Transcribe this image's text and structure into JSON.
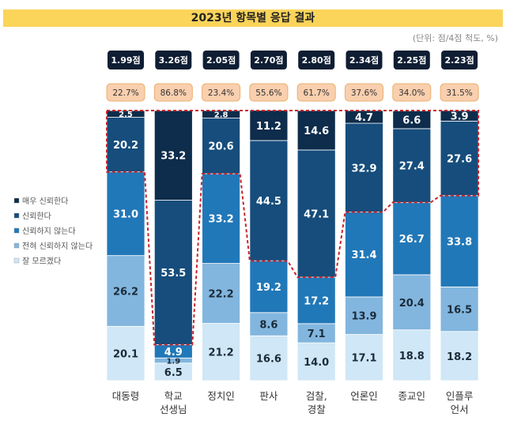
{
  "chart_data": {
    "type": "bar",
    "stacked": true,
    "orientation": "vertical",
    "title": "2023년 항목별 응답 결과",
    "unit_note": "(단위: 점/4점 척도, %)",
    "categories": [
      "대동령",
      "학교\n선생님",
      "정치인",
      "판사",
      "검찰,\n경찰",
      "언론인",
      "종교인",
      "인플루\n언서"
    ],
    "scores": [
      "1.99점",
      "3.26점",
      "2.05점",
      "2.70점",
      "2.80점",
      "2.34점",
      "2.25점",
      "2.23점"
    ],
    "trust_percents": [
      "22.7%",
      "86.8%",
      "23.4%",
      "55.6%",
      "61.7%",
      "37.6%",
      "34.0%",
      "31.5%"
    ],
    "series": [
      {
        "name": "잘 모르겠다",
        "color": "#cfe7f6",
        "values": [
          20.1,
          6.5,
          21.2,
          16.6,
          14.0,
          17.1,
          18.8,
          18.2
        ]
      },
      {
        "name": "전혀 신뢰하지 않는다",
        "color": "#82b6de",
        "values": [
          26.2,
          1.9,
          22.2,
          8.6,
          7.1,
          13.9,
          20.4,
          16.5
        ]
      },
      {
        "name": "신뢰하지 않는다",
        "color": "#2178b8",
        "values": [
          31.0,
          4.9,
          33.2,
          19.2,
          17.2,
          31.4,
          26.7,
          33.8
        ]
      },
      {
        "name": "신뢰한다",
        "color": "#164d7c",
        "values": [
          20.2,
          53.5,
          20.6,
          44.5,
          47.1,
          32.9,
          27.4,
          27.6
        ]
      },
      {
        "name": "매우 신뢰한다",
        "color": "#0e2c4b",
        "values": [
          2.5,
          33.2,
          2.8,
          11.2,
          14.6,
          4.7,
          6.6,
          3.9
        ]
      }
    ],
    "ylim": [
      0,
      100
    ],
    "legend_position": "left",
    "highlight_color": "#c8242c",
    "score_badge_color": "#0f1e33",
    "percent_badge_color": "#f9cfae"
  }
}
